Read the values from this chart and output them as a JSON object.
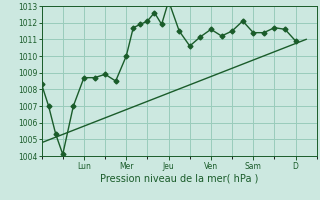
{
  "xlabel": "Pression niveau de la mer( hPa )",
  "bg_color": "#cce8e0",
  "grid_color": "#99ccbb",
  "line_color": "#1a5c2a",
  "ylim": [
    1004,
    1013
  ],
  "yticks": [
    1004,
    1005,
    1006,
    1007,
    1008,
    1009,
    1010,
    1011,
    1012,
    1013
  ],
  "day_labels": [
    "Lun",
    "Mer",
    "Jeu",
    "Ven",
    "Sam",
    "D"
  ],
  "day_positions": [
    2.0,
    4.0,
    6.0,
    8.0,
    10.0,
    12.0
  ],
  "xlim": [
    0,
    13.0
  ],
  "series1_x": [
    0.0,
    0.33,
    0.67,
    1.0,
    1.5,
    2.0,
    2.5,
    3.0,
    3.5,
    4.0,
    4.33,
    4.67,
    5.0,
    5.33,
    5.67,
    6.0,
    6.5,
    7.0,
    7.5,
    8.0,
    8.5,
    9.0,
    9.5,
    10.0,
    10.5,
    11.0,
    11.5,
    12.0
  ],
  "series1_y": [
    1008.3,
    1007.0,
    1005.3,
    1004.1,
    1007.0,
    1008.7,
    1008.7,
    1008.9,
    1008.5,
    1010.0,
    1011.7,
    1011.9,
    1012.1,
    1012.6,
    1011.9,
    1013.3,
    1011.5,
    1010.6,
    1011.15,
    1011.6,
    1011.2,
    1011.5,
    1012.1,
    1011.4,
    1011.4,
    1011.7,
    1011.6,
    1010.9
  ],
  "series2_x": [
    0.0,
    12.5
  ],
  "series2_y": [
    1004.8,
    1011.0
  ],
  "marker": "D",
  "markersize": 2.5,
  "linewidth": 1.0,
  "tick_fontsize": 5.5,
  "xlabel_fontsize": 7.0
}
